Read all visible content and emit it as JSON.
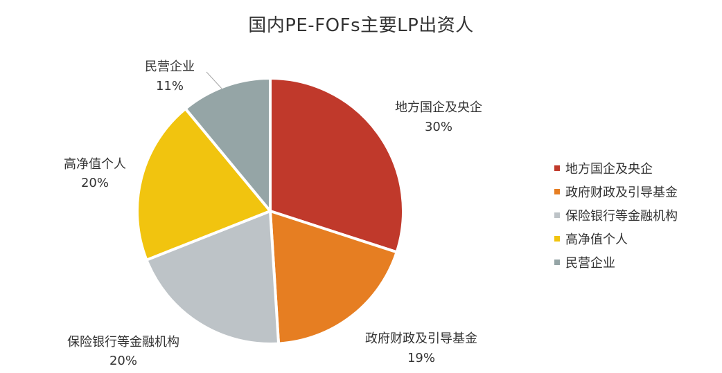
{
  "chart_data": {
    "type": "pie",
    "title": "国内PE-FOFs主要LP出资人",
    "slices": [
      {
        "label": "地方国企及央企",
        "value": 30,
        "value_label": "30%",
        "color": "#C0392B"
      },
      {
        "label": "政府财政及引导基金",
        "value": 19,
        "value_label": "19%",
        "color": "#E67E22"
      },
      {
        "label": "保险银行等金融机构",
        "value": 20,
        "value_label": "20%",
        "color": "#BDC3C7"
      },
      {
        "label": "高净值个人",
        "value": 20,
        "value_label": "20%",
        "color": "#F1C40F"
      },
      {
        "label": "民营企业",
        "value": 11,
        "value_label": "11%",
        "color": "#95A5A6"
      }
    ],
    "start_angle": "12 o'clock",
    "direction": "clockwise",
    "legend_placement": "right"
  }
}
